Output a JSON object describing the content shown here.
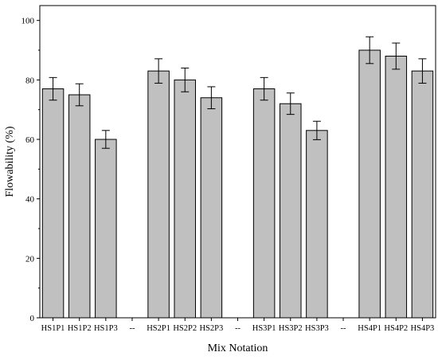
{
  "chart_data": {
    "type": "bar",
    "title": "",
    "xlabel": "Mix Notation",
    "ylabel": "Flowability (%)",
    "ylim": [
      0,
      105
    ],
    "yticks": [
      0,
      20,
      40,
      60,
      80,
      100
    ],
    "grid": false,
    "legend": "none",
    "bar_color": "#c0c0c0",
    "categories": [
      "HS1P1",
      "HS1P2",
      "HS1P3",
      "--",
      "HS2P1",
      "HS2P2",
      "HS2P3",
      "--",
      "HS3P1",
      "HS3P2",
      "HS3P3",
      "--",
      "HS4P1",
      "HS4P2",
      "HS4P3"
    ],
    "values": [
      77,
      75,
      60,
      null,
      83,
      80,
      74,
      null,
      77,
      72,
      63,
      null,
      90,
      88,
      83
    ],
    "errors": [
      3.8,
      3.7,
      3.0,
      null,
      4.1,
      4.0,
      3.7,
      null,
      3.8,
      3.6,
      3.1,
      null,
      4.5,
      4.4,
      4.1
    ]
  }
}
